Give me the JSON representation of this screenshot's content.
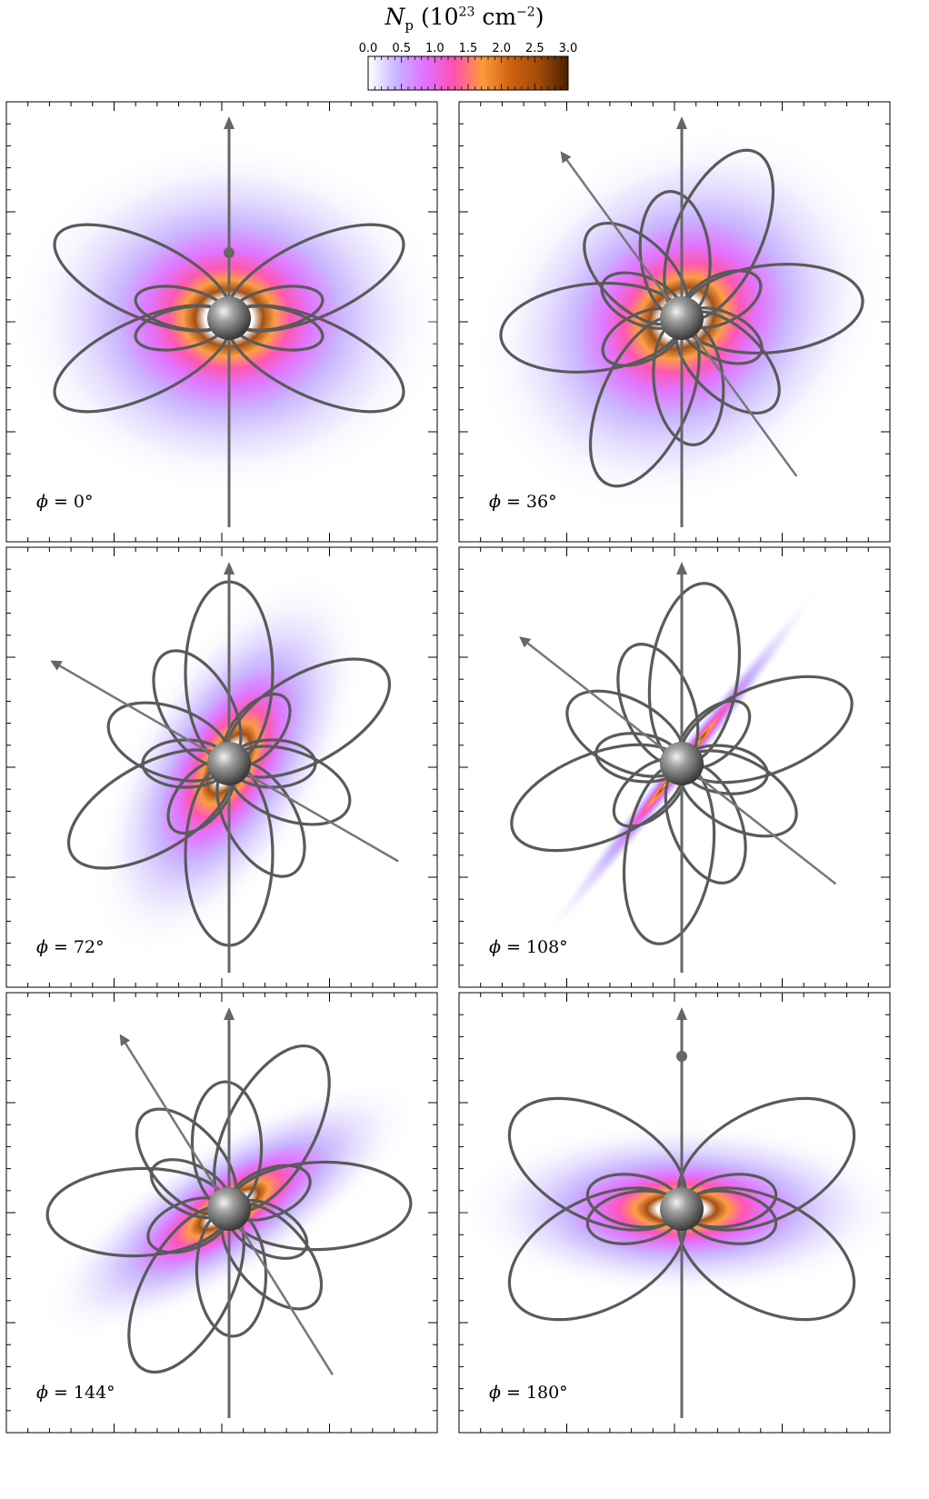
{
  "colorbar": {
    "title_symbol": "N",
    "title_subscript": "p",
    "title_unit": "(10",
    "title_exponent": "23",
    "title_unit_rest": "cm",
    "title_unit_exponent": "−2",
    "title_close": ")",
    "ticks": [
      "0.0",
      "0.5",
      "1.0",
      "1.5",
      "2.0",
      "2.5",
      "3.0"
    ],
    "range": [
      0.0,
      3.0
    ],
    "colors": [
      "#ffffff",
      "#c8b4ff",
      "#e070ff",
      "#ff50b0",
      "#ff9a3c",
      "#d06010",
      "#a04a08",
      "#4a2000"
    ]
  },
  "panels": [
    {
      "phi_symbol": "ϕ",
      "phi_label": "=  0°",
      "tilt": 0
    },
    {
      "phi_symbol": "ϕ",
      "phi_label": "=  36°",
      "tilt": 36
    },
    {
      "phi_symbol": "ϕ",
      "phi_label": "=  72°",
      "tilt": 60
    },
    {
      "phi_symbol": "ϕ",
      "phi_label": "=  108°",
      "tilt": 52
    },
    {
      "phi_symbol": "ϕ",
      "phi_label": "=  144°",
      "tilt": 32
    },
    {
      "phi_symbol": "ϕ",
      "phi_label": "=  180°",
      "tilt": 0
    }
  ]
}
